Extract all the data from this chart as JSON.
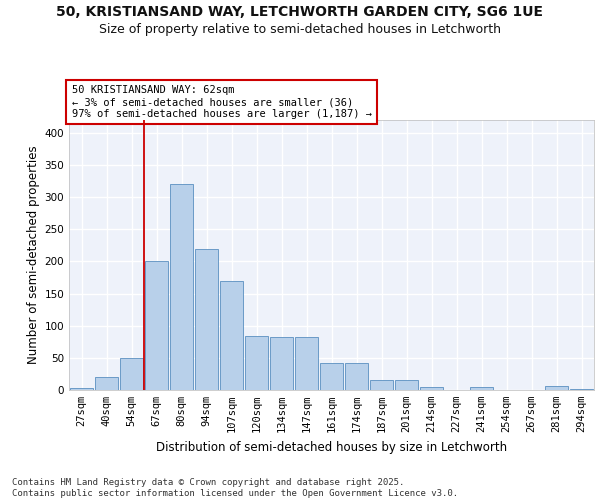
{
  "title_line1": "50, KRISTIANSAND WAY, LETCHWORTH GARDEN CITY, SG6 1UE",
  "title_line2": "Size of property relative to semi-detached houses in Letchworth",
  "xlabel": "Distribution of semi-detached houses by size in Letchworth",
  "ylabel": "Number of semi-detached properties",
  "categories": [
    "27sqm",
    "40sqm",
    "54sqm",
    "67sqm",
    "80sqm",
    "94sqm",
    "107sqm",
    "120sqm",
    "134sqm",
    "147sqm",
    "161sqm",
    "174sqm",
    "187sqm",
    "201sqm",
    "214sqm",
    "227sqm",
    "241sqm",
    "254sqm",
    "267sqm",
    "281sqm",
    "294sqm"
  ],
  "values": [
    3,
    20,
    50,
    201,
    321,
    219,
    170,
    84,
    83,
    82,
    42,
    42,
    15,
    15,
    5,
    0,
    5,
    0,
    0,
    6,
    2
  ],
  "bar_color": "#b8d0ea",
  "bar_edge_color": "#5a8fc0",
  "vline_index": 3,
  "annotation_text": "50 KRISTIANSAND WAY: 62sqm\n← 3% of semi-detached houses are smaller (36)\n97% of semi-detached houses are larger (1,187) →",
  "annotation_box_color": "#ffffff",
  "annotation_box_edge_color": "#cc0000",
  "vline_color": "#cc0000",
  "ylim": [
    0,
    420
  ],
  "yticks": [
    0,
    50,
    100,
    150,
    200,
    250,
    300,
    350,
    400
  ],
  "footer_text": "Contains HM Land Registry data © Crown copyright and database right 2025.\nContains public sector information licensed under the Open Government Licence v3.0.",
  "background_color": "#eef2fa",
  "grid_color": "#ffffff",
  "title_fontsize": 10,
  "subtitle_fontsize": 9,
  "axis_label_fontsize": 8.5,
  "tick_fontsize": 7.5,
  "annotation_fontsize": 7.5,
  "footer_fontsize": 6.5
}
